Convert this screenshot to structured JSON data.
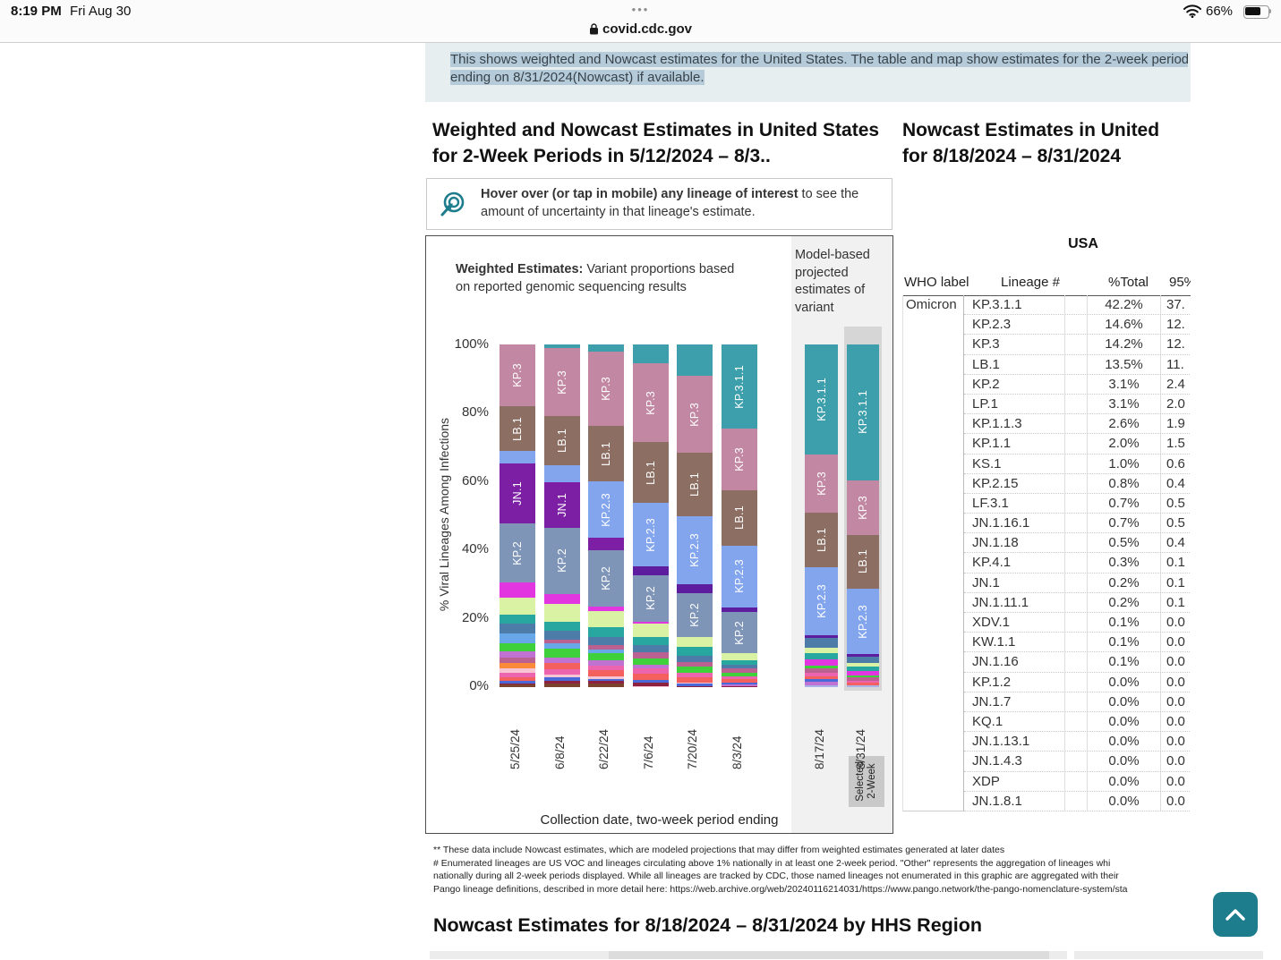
{
  "status_bar": {
    "time": "8:19 PM",
    "date": "Fri Aug 30",
    "handle_dots": "•••",
    "battery_percent": "66%"
  },
  "url_bar": {
    "domain": "covid.cdc.gov"
  },
  "selection_banner": {
    "line1": "This shows weighted and Nowcast estimates for the United States. The table and map show estimates for the 2-week period",
    "line2": "ending on 8/31/2024(Nowcast) if available."
  },
  "weighted_panel": {
    "title": "Weighted and Nowcast Estimates in United States for 2-Week Periods in 5/12/2024 – 8/3..",
    "hover_tip_bold": "Hover over (or tap in mobile) any lineage of interest",
    "hover_tip_rest": " to see the amount of uncertainty in that lineage's estimate.",
    "weighted_label_bold": "Weighted Estimates:",
    "weighted_label_rest": " Variant proportions based on reported genomic sequencing results",
    "model_label": "Model-based projected estimates of variant",
    "y_axis_label": "% Viral Lineages Among Infections",
    "x_axis_label": "Collection date, two-week period ending",
    "selected_box_line1": "Selected",
    "selected_box_line2": "2-Week",
    "y_ticks": [
      "100%",
      "80%",
      "60%",
      "40%",
      "20%",
      "0%"
    ]
  },
  "chart_data": {
    "type": "stacked-bar",
    "ylim": [
      0,
      100
    ],
    "palette": {
      "kp311": "#3d9fab",
      "kp3": "#c287a2",
      "lb1": "#8d6e63",
      "kp23": "#82a5ee",
      "jn1": "#7d1fa5",
      "kp2": "#7e95b8",
      "dkpurple": "#5e1d9e",
      "magenta": "#e236e0",
      "ltgreen": "#d9f2a4",
      "teal2": "#27a79f",
      "slate": "#4e7ca8",
      "sky": "#69a8e8",
      "green": "#3ed13c",
      "orchid": "#bf72d2",
      "rose": "#bb6191",
      "orange": "#fb8a3a",
      "ltpink": "#f6c4d2",
      "pink": "#ec64ae",
      "salmon": "#f4605e",
      "blue": "#4a69d8",
      "maroon": "#8e2040",
      "brown": "#7c432e",
      "lavender": "#aab4e8"
    },
    "weighted": [
      {
        "date": "5/25/24",
        "segments": [
          [
            "KP.3",
            15.5,
            "kp3",
            1
          ],
          [
            "LB.1",
            8.5,
            "lb1",
            1
          ],
          [
            "KP.2.3",
            5,
            "kp23",
            0
          ],
          [
            "JN.1",
            14.5,
            "jn1",
            1
          ],
          [
            "KP.2",
            14.5,
            "kp2",
            1
          ],
          [
            "Other",
            6,
            "magenta",
            0
          ],
          [
            "Other",
            7,
            "ltgreen",
            0
          ],
          [
            "Other",
            3.5,
            "teal2",
            0
          ],
          [
            "Other",
            4,
            "slate",
            0
          ],
          [
            "Other",
            4,
            "sky",
            0
          ],
          [
            "Other",
            3.5,
            "green",
            0
          ],
          [
            "Other",
            2.5,
            "orchid",
            0
          ],
          [
            "Other",
            2,
            "rose",
            0
          ],
          [
            "Other",
            2.5,
            "orange",
            0
          ],
          [
            "Other",
            1.5,
            "ltpink",
            0
          ],
          [
            "Other",
            2,
            "pink",
            0
          ],
          [
            "Other",
            1.5,
            "salmon",
            0
          ],
          [
            "Other",
            1,
            "blue",
            0
          ],
          [
            "Other",
            0.5,
            "maroon",
            0
          ],
          [
            "Other",
            1,
            "brown",
            0
          ]
        ]
      },
      {
        "date": "6/8/24",
        "segments": [
          [
            "KP.3.1.1",
            1.5,
            "kp311",
            0
          ],
          [
            "KP.3",
            17,
            "kp3",
            1
          ],
          [
            "LB.1",
            10,
            "lb1",
            1
          ],
          [
            "KP.2.3",
            6.5,
            "kp23",
            0
          ],
          [
            "JN.1",
            8.5,
            "jn1",
            1
          ],
          [
            "KP.2",
            16.5,
            "kp2",
            1
          ],
          [
            "Other",
            4,
            "magenta",
            0
          ],
          [
            "Other",
            7,
            "ltgreen",
            0
          ],
          [
            "Other",
            3.5,
            "teal2",
            0
          ],
          [
            "Other",
            3.5,
            "slate",
            0
          ],
          [
            "Other",
            1.5,
            "rose",
            0
          ],
          [
            "Other",
            2,
            "sky",
            0
          ],
          [
            "Other",
            3.5,
            "green",
            0
          ],
          [
            "Other",
            2,
            "orchid",
            0
          ],
          [
            "Other",
            2.5,
            "salmon",
            0
          ],
          [
            "Other",
            2,
            "pink",
            0
          ],
          [
            "Other",
            1,
            "ltpink",
            0
          ],
          [
            "Other",
            1.5,
            "blue",
            0
          ],
          [
            "Other",
            1,
            "maroon",
            0
          ],
          [
            "Other",
            1.5,
            "brown",
            0
          ]
        ]
      },
      {
        "date": "6/22/24",
        "segments": [
          [
            "KP.3.1.1",
            3,
            "kp311",
            0
          ],
          [
            "KP.3",
            21,
            "kp3",
            1
          ],
          [
            "LB.1",
            13,
            "lb1",
            1
          ],
          [
            "KP.2.3",
            9.5,
            "kp23",
            1
          ],
          [
            "JN.1",
            5,
            "jn1",
            0
          ],
          [
            "KP.2",
            13.5,
            "kp2",
            1
          ],
          [
            "Other",
            2,
            "magenta",
            0
          ],
          [
            "Other",
            6.5,
            "ltgreen",
            0
          ],
          [
            "Other",
            4,
            "teal2",
            0
          ],
          [
            "Other",
            3.5,
            "slate",
            0
          ],
          [
            "Other",
            2,
            "rose",
            0
          ],
          [
            "Other",
            1.5,
            "sky",
            0
          ],
          [
            "Other",
            3,
            "green",
            0
          ],
          [
            "Other",
            2,
            "orchid",
            0
          ],
          [
            "Other",
            2,
            "pink",
            0
          ],
          [
            "Other",
            2.5,
            "salmon",
            0
          ],
          [
            "Other",
            1,
            "ltpink",
            0
          ],
          [
            "Other",
            1,
            "blue",
            0
          ],
          [
            "Other",
            1,
            "maroon",
            0
          ],
          [
            "Other",
            1.5,
            "brown",
            0
          ]
        ]
      },
      {
        "date": "7/6/24",
        "segments": [
          [
            "KP.3.1.1",
            8,
            "kp311",
            0
          ],
          [
            "KP.3",
            23,
            "kp3",
            1
          ],
          [
            "LB.1",
            15.5,
            "lb1",
            1
          ],
          [
            "KP.2.3",
            12.5,
            "kp23",
            1
          ],
          [
            "Other",
            3.5,
            "dkpurple",
            0
          ],
          [
            "KP.2",
            9.5,
            "kp2",
            1
          ],
          [
            "Other",
            1,
            "magenta",
            0
          ],
          [
            "Other",
            5.5,
            "ltgreen",
            0
          ],
          [
            "Other",
            3.5,
            "teal2",
            0
          ],
          [
            "Other",
            3,
            "slate",
            0
          ],
          [
            "Other",
            2.5,
            "rose",
            0
          ],
          [
            "Other",
            2.5,
            "green",
            0
          ],
          [
            "Other",
            1.5,
            "orchid",
            0
          ],
          [
            "Other",
            2.5,
            "pink",
            0
          ],
          [
            "Other",
            2.5,
            "salmon",
            0
          ],
          [
            "Other",
            1,
            "blue",
            0
          ],
          [
            "Other",
            1.5,
            "maroon",
            0
          ],
          [
            "Other",
            0.5,
            "ltpink",
            0
          ]
        ]
      },
      {
        "date": "7/20/24",
        "segments": [
          [
            "KP.3.1.1",
            13,
            "kp311",
            0
          ],
          [
            "KP.3",
            22.5,
            "kp3",
            1
          ],
          [
            "LB.1",
            16.5,
            "lb1",
            1
          ],
          [
            "KP.2.3",
            14.5,
            "kp23",
            1
          ],
          [
            "Other",
            3.5,
            "dkpurple",
            0
          ],
          [
            "KP.2",
            8.5,
            "kp2",
            1
          ],
          [
            "Other",
            4,
            "ltgreen",
            0
          ],
          [
            "Other",
            4,
            "teal2",
            0
          ],
          [
            "Other",
            2.5,
            "slate",
            0
          ],
          [
            "Other",
            2,
            "rose",
            0
          ],
          [
            "Other",
            2.5,
            "green",
            0
          ],
          [
            "Other",
            2,
            "pink",
            0
          ],
          [
            "Other",
            2,
            "salmon",
            0
          ],
          [
            "Other",
            0.5,
            "ltpink",
            0
          ],
          [
            "Other",
            1,
            "blue",
            0
          ],
          [
            "Other",
            0.5,
            "maroon",
            0
          ]
        ]
      },
      {
        "date": "8/3/24",
        "segments": [
          [
            "KP.3.1.1",
            21,
            "kp311",
            1
          ],
          [
            "KP.3",
            19.5,
            "kp3",
            1
          ],
          [
            "LB.1",
            16,
            "lb1",
            1
          ],
          [
            "KP.2.3",
            14.5,
            "kp23",
            1
          ],
          [
            "Other",
            2.5,
            "dkpurple",
            0
          ],
          [
            "KP.2",
            9,
            "kp2",
            1
          ],
          [
            "Other",
            3.5,
            "ltgreen",
            0
          ],
          [
            "Other",
            2.5,
            "teal2",
            0
          ],
          [
            "Other",
            2,
            "slate",
            0
          ],
          [
            "Other",
            2,
            "rose",
            0
          ],
          [
            "Other",
            2,
            "green",
            0
          ],
          [
            "Other",
            1.5,
            "pink",
            0
          ],
          [
            "Other",
            1.5,
            "salmon",
            0
          ],
          [
            "Other",
            1,
            "blue",
            0
          ],
          [
            "Other",
            1,
            "orchid",
            0
          ],
          [
            "Other",
            0.5,
            "maroon",
            0
          ]
        ]
      }
    ],
    "nowcast": [
      {
        "date": "8/17/24",
        "selected": false,
        "segments": [
          [
            "KP.3.1.1",
            30.5,
            "kp311",
            1
          ],
          [
            "KP.3",
            15.5,
            "kp3",
            1
          ],
          [
            "LB.1",
            14,
            "lb1",
            1
          ],
          [
            "KP.2.3",
            15.5,
            "kp23",
            1
          ],
          [
            "Other",
            1.2,
            "dkpurple",
            0
          ],
          [
            "Other",
            4.5,
            "slate",
            0
          ],
          [
            "Other",
            2.5,
            "ltgreen",
            0
          ],
          [
            "Other",
            3,
            "teal2",
            0
          ],
          [
            "Other",
            2.5,
            "magenta",
            0
          ],
          [
            "Other",
            1.5,
            "green",
            0
          ],
          [
            "Other",
            2,
            "rose",
            0
          ],
          [
            "Other",
            1.5,
            "pink",
            0
          ],
          [
            "Other",
            1.5,
            "salmon",
            0
          ],
          [
            "Other",
            1,
            "blue",
            0
          ],
          [
            "Other",
            1.5,
            "orchid",
            0
          ],
          [
            "Other",
            1,
            "lavender",
            0
          ]
        ]
      },
      {
        "date": "8/31/24",
        "selected": true,
        "segments": [
          [
            "KP.3.1.1",
            42.2,
            "kp311",
            1
          ],
          [
            "KP.3",
            14.2,
            "kp3",
            1
          ],
          [
            "LB.1",
            13.5,
            "lb1",
            1
          ],
          [
            "KP.2.3",
            14.6,
            "kp23",
            1
          ],
          [
            "Other",
            1,
            "dkpurple",
            0
          ],
          [
            "Other",
            3.1,
            "slate",
            0
          ],
          [
            "Other",
            1.5,
            "ltgreen",
            0
          ],
          [
            "Other",
            2,
            "teal2",
            0
          ],
          [
            "Other",
            2,
            "magenta",
            0
          ],
          [
            "Other",
            1,
            "green",
            0
          ],
          [
            "Other",
            1.5,
            "rose",
            0
          ],
          [
            "Other",
            1,
            "pink",
            0
          ],
          [
            "Other",
            1,
            "salmon",
            0
          ],
          [
            "Other",
            1,
            "lavender",
            0
          ]
        ]
      }
    ]
  },
  "nowcast_table": {
    "title_line1": "Nowcast Estimates in United",
    "title_line2": "for 8/18/2024 – 8/31/2024",
    "region": "USA",
    "columns": {
      "who": "WHO label",
      "lineage": "Lineage #",
      "total": "%Total",
      "ci": "95%"
    },
    "who_label": "Omicron",
    "rows": [
      [
        "KP.3.1.1",
        "42.2%",
        "37."
      ],
      [
        "KP.2.3",
        "14.6%",
        "12."
      ],
      [
        "KP.3",
        "14.2%",
        "12."
      ],
      [
        "LB.1",
        "13.5%",
        "11."
      ],
      [
        "KP.2",
        "3.1%",
        "2.4"
      ],
      [
        "LP.1",
        "3.1%",
        "2.0"
      ],
      [
        "KP.1.1.3",
        "2.6%",
        "1.9"
      ],
      [
        "KP.1.1",
        "2.0%",
        "1.5"
      ],
      [
        "KS.1",
        "1.0%",
        "0.6"
      ],
      [
        "KP.2.15",
        "0.8%",
        "0.4"
      ],
      [
        "LF.3.1",
        "0.7%",
        "0.5"
      ],
      [
        "JN.1.16.1",
        "0.7%",
        "0.5"
      ],
      [
        "JN.1.18",
        "0.5%",
        "0.4"
      ],
      [
        "KP.4.1",
        "0.3%",
        "0.1"
      ],
      [
        "JN.1",
        "0.2%",
        "0.1"
      ],
      [
        "JN.1.11.1",
        "0.2%",
        "0.1"
      ],
      [
        "XDV.1",
        "0.1%",
        "0.0"
      ],
      [
        "KW.1.1",
        "0.1%",
        "0.0"
      ],
      [
        "JN.1.16",
        "0.1%",
        "0.0"
      ],
      [
        "KP.1.2",
        "0.0%",
        "0.0"
      ],
      [
        "JN.1.7",
        "0.0%",
        "0.0"
      ],
      [
        "KQ.1",
        "0.0%",
        "0.0"
      ],
      [
        "JN.1.13.1",
        "0.0%",
        "0.0"
      ],
      [
        "JN.1.4.3",
        "0.0%",
        "0.0"
      ],
      [
        "XDP",
        "0.0%",
        "0.0"
      ],
      [
        "JN.1.8.1",
        "0.0%",
        "0.0"
      ]
    ]
  },
  "footnotes": [
    "**      These data include Nowcast estimates, which are modeled projections that may differ from weighted estimates generated at later dates",
    "# Enumerated lineages are US VOC and lineages circulating above 1% nationally in at least one 2-week period. \"Other\" represents the aggregation of lineages whi",
    "nationally during all 2-week periods displayed.  While all lineages are tracked by CDC, those named lineages not enumerated in this graphic are aggregated with their ",
    "Pango lineage definitions, described in more detail here: https://web.archive.org/web/20240116214031/https://www.pango.network/the-pango-nomenclature-system/sta"
  ],
  "bottom_section": {
    "heading": "Nowcast Estimates for 8/18/2024 – 8/31/2024 by HHS Region"
  }
}
